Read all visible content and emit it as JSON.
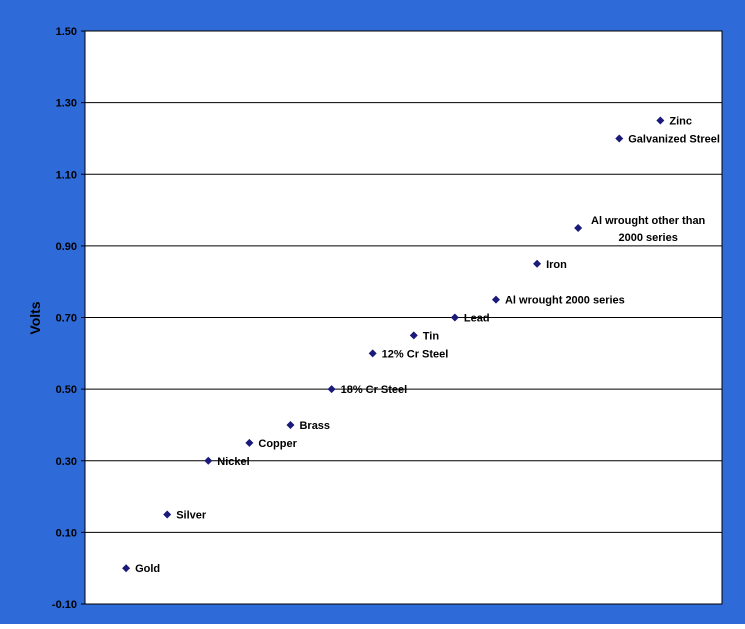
{
  "chart_data": {
    "type": "scatter",
    "title": "",
    "xlabel": "",
    "ylabel": "Volts",
    "ylim": [
      -0.1,
      1.5
    ],
    "yticks": [
      "1.50",
      "1.30",
      "1.10",
      "0.90",
      "0.70",
      "0.50",
      "0.30",
      "0.10",
      "-0.10"
    ],
    "grid": true,
    "colors": {
      "frame": "#2f6bd8",
      "plot_bg": "#ffffff",
      "marker": "#1a1a7a",
      "gridline": "#000000"
    },
    "points": [
      {
        "label": "Gold",
        "x": 1,
        "y": 0.0
      },
      {
        "label": "Silver",
        "x": 2,
        "y": 0.15
      },
      {
        "label": "Nickel",
        "x": 3,
        "y": 0.3
      },
      {
        "label": "Copper",
        "x": 4,
        "y": 0.35
      },
      {
        "label": "Brass",
        "x": 5,
        "y": 0.4
      },
      {
        "label": "18% Cr Steel",
        "x": 6,
        "y": 0.5
      },
      {
        "label": "12% Cr Steel",
        "x": 7,
        "y": 0.6
      },
      {
        "label": "Tin",
        "x": 8,
        "y": 0.65
      },
      {
        "label": "Lead",
        "x": 9,
        "y": 0.7
      },
      {
        "label": "Al wrought 2000 series",
        "x": 10,
        "y": 0.75
      },
      {
        "label": "Iron",
        "x": 11,
        "y": 0.85
      },
      {
        "label": "Al wrought other than 2000 series",
        "x": 12,
        "y": 0.95
      },
      {
        "label": "Galvanized Streel",
        "x": 13,
        "y": 1.2
      },
      {
        "label": "Zinc",
        "x": 14,
        "y": 1.25
      }
    ]
  }
}
